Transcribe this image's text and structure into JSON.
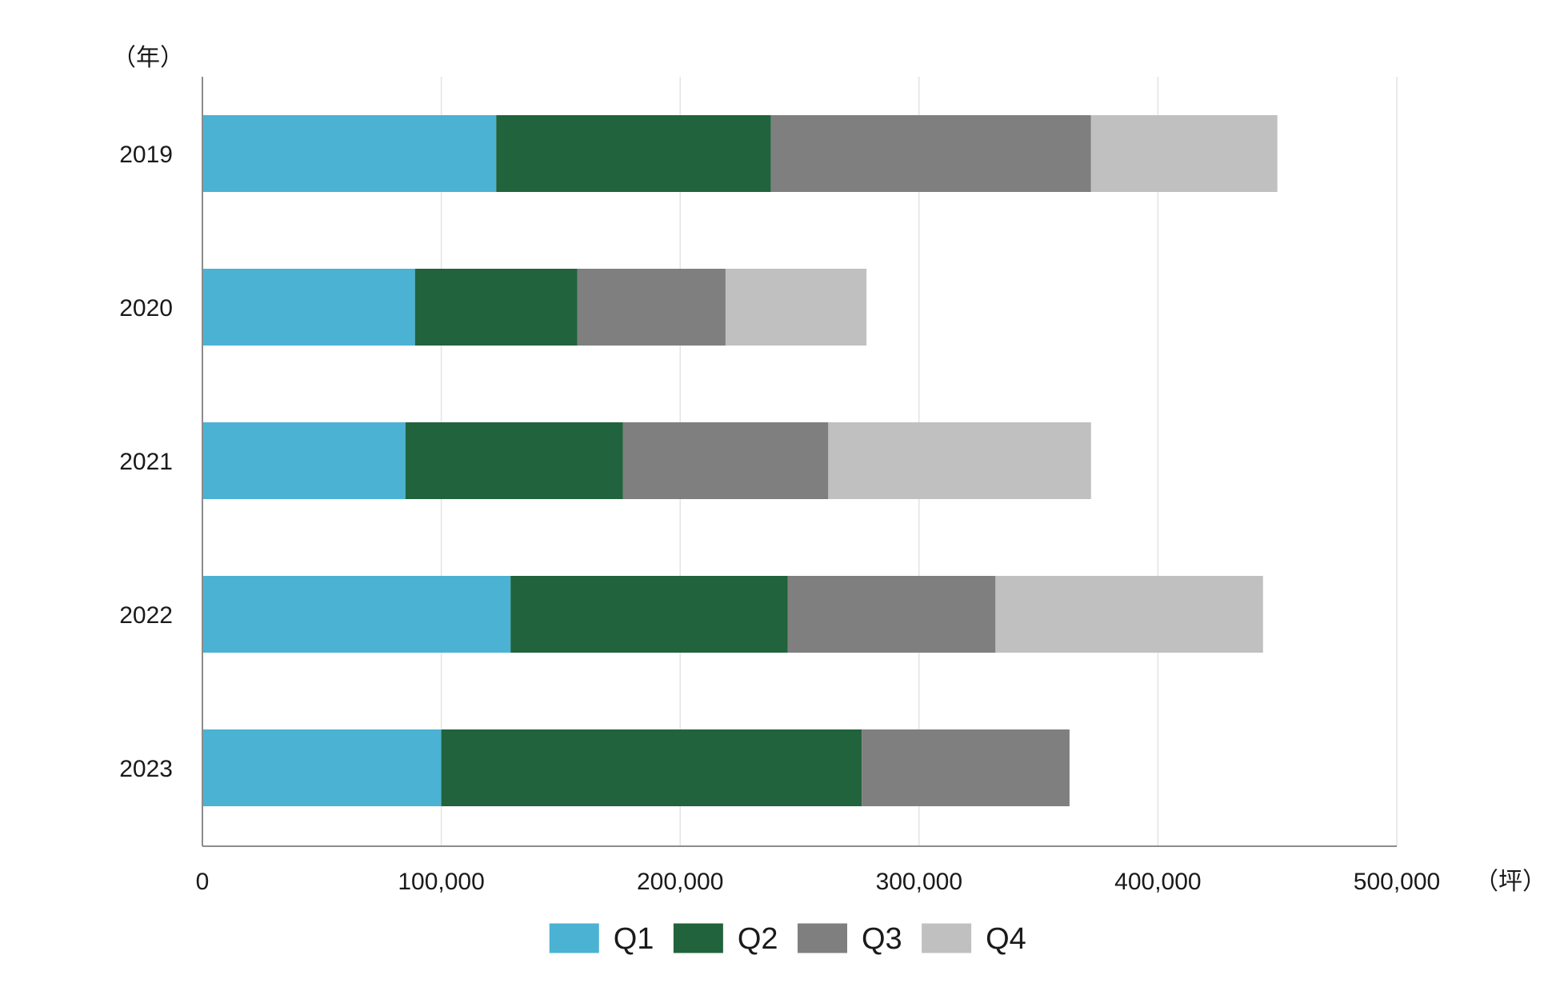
{
  "chart_data": {
    "type": "bar",
    "orientation": "horizontal",
    "stacked": true,
    "title": "",
    "ylabel": "（年）",
    "xlabel": "（坪）",
    "categories": [
      "2019",
      "2020",
      "2021",
      "2022",
      "2023"
    ],
    "xlim": [
      0,
      500000
    ],
    "xticks": [
      0,
      100000,
      200000,
      300000,
      400000,
      500000
    ],
    "xtick_labels": [
      "0",
      "100,000",
      "200,000",
      "300,000",
      "400,000",
      "500,000"
    ],
    "grid": true,
    "legend_position": "bottom-center",
    "series": [
      {
        "name": "Q1",
        "color": "#4BB2D3",
        "values": [
          123000,
          89000,
          85000,
          129000,
          100000
        ]
      },
      {
        "name": "Q2",
        "color": "#21633C",
        "values": [
          115000,
          68000,
          91000,
          116000,
          176000
        ]
      },
      {
        "name": "Q3",
        "color": "#7F7F7F",
        "values": [
          134000,
          62000,
          86000,
          87000,
          87000
        ]
      },
      {
        "name": "Q4",
        "color": "#C0C0C0",
        "values": [
          78000,
          59000,
          110000,
          112000,
          0
        ]
      }
    ]
  }
}
